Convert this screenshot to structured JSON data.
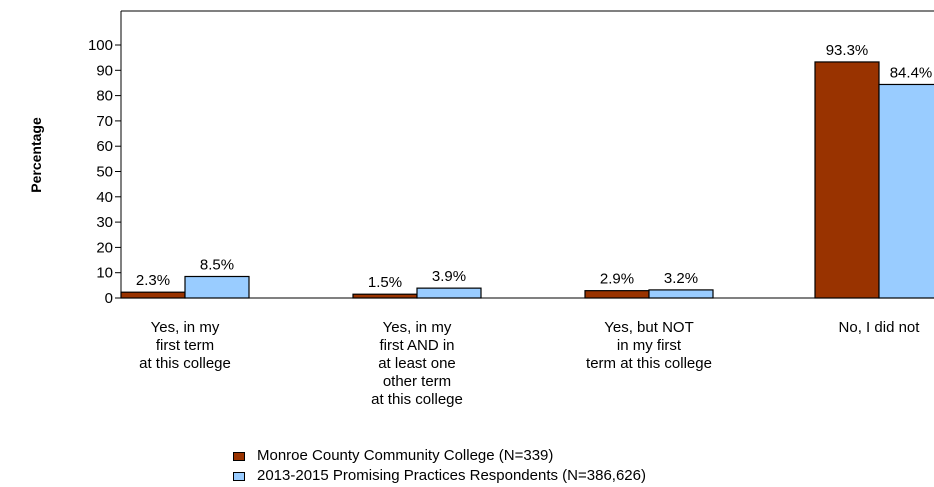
{
  "chart_data": {
    "type": "bar",
    "ylabel": "Percentage",
    "ylim": [
      0,
      100
    ],
    "yticks": [
      0,
      10,
      20,
      30,
      40,
      50,
      60,
      70,
      80,
      90,
      100
    ],
    "categories": [
      [
        "Yes, in my",
        "first term",
        "at this college"
      ],
      [
        "Yes, in my",
        "first AND in",
        "at least one",
        "other term",
        "at this college"
      ],
      [
        "Yes, but NOT",
        "in my first",
        "term at this college"
      ],
      [
        "No, I did not"
      ]
    ],
    "series": [
      {
        "name": "Monroe County Community College (N=339)",
        "color": "#993300",
        "values": [
          2.3,
          1.5,
          2.9,
          93.3
        ],
        "labels": [
          "2.3%",
          "1.5%",
          "2.9%",
          "93.3%"
        ]
      },
      {
        "name": "2013-2015 Promising Practices Respondents (N=386,626)",
        "color": "#99ccff",
        "values": [
          8.5,
          3.9,
          3.2,
          84.4
        ],
        "labels": [
          "8.5%",
          "3.9%",
          "3.2%",
          "84.4%"
        ]
      }
    ],
    "legend_position": "bottom"
  }
}
